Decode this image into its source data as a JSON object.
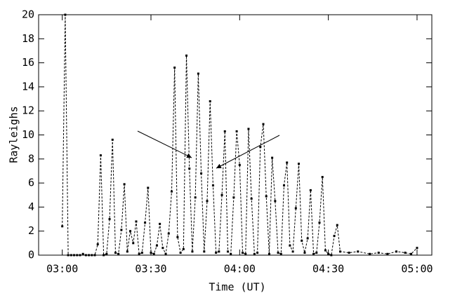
{
  "chart_data": {
    "type": "line",
    "x_label": "Time (UT)",
    "y_label": "Rayleighs",
    "x": [
      "03:00",
      "03:01",
      "03:02",
      "03:03",
      "03:04",
      "03:05",
      "03:06",
      "03:07",
      "03:08",
      "03:09",
      "03:10",
      "03:11",
      "03:12",
      "03:13",
      "03:14",
      "03:15",
      "03:16",
      "03:17",
      "03:18",
      "03:19",
      "03:20",
      "03:21",
      "03:22",
      "03:23",
      "03:24",
      "03:25",
      "03:26",
      "03:27",
      "03:28",
      "03:29",
      "03:30",
      "03:31",
      "03:32",
      "03:33",
      "03:34",
      "03:35",
      "03:36",
      "03:37",
      "03:38",
      "03:39",
      "03:40",
      "03:41",
      "03:42",
      "03:43",
      "03:44",
      "03:45",
      "03:46",
      "03:47",
      "03:48",
      "03:49",
      "03:50",
      "03:51",
      "03:52",
      "03:53",
      "03:54",
      "03:55",
      "03:56",
      "03:57",
      "03:58",
      "03:59",
      "04:00",
      "04:01",
      "04:02",
      "04:03",
      "04:04",
      "04:05",
      "04:06",
      "04:07",
      "04:08",
      "04:09",
      "04:10",
      "04:11",
      "04:12",
      "04:13",
      "04:14",
      "04:15",
      "04:16",
      "04:17",
      "04:18",
      "04:19",
      "04:20",
      "04:21",
      "04:22",
      "04:23",
      "04:24",
      "04:25",
      "04:26",
      "04:27",
      "04:28",
      "04:29",
      "04:30",
      "04:31",
      "04:32",
      "04:33",
      "04:34",
      "04:37",
      "04:40",
      "04:44",
      "04:47",
      "04:50",
      "04:53",
      "04:56",
      "04:58",
      "05:00"
    ],
    "values": [
      2.4,
      20,
      0,
      0,
      0,
      0,
      0,
      0.1,
      0,
      0,
      0,
      0,
      0.9,
      8.3,
      0,
      0.1,
      3.0,
      9.6,
      0.2,
      0.1,
      2.1,
      5.9,
      0.3,
      2.0,
      1.0,
      2.8,
      0.1,
      0.2,
      2.7,
      5.6,
      0.2,
      0.1,
      0.8,
      2.6,
      0.6,
      0.1,
      1.8,
      5.3,
      15.6,
      1.5,
      0.2,
      0.5,
      16.6,
      7.2,
      0.3,
      4.8,
      15.1,
      6.8,
      0.3,
      4.5,
      12.8,
      5.8,
      0.2,
      0.3,
      5.0,
      10.3,
      0.3,
      0.1,
      4.8,
      10.3,
      7.5,
      0.2,
      0.1,
      10.5,
      4.7,
      0.1,
      0.2,
      9.0,
      10.9,
      4.9,
      0.1,
      8.1,
      4.5,
      0.2,
      0.1,
      5.8,
      7.7,
      0.8,
      0.3,
      3.9,
      7.6,
      1.2,
      0.2,
      1.4,
      5.4,
      0.1,
      0.2,
      2.7,
      6.5,
      0.4,
      0.1,
      0,
      1.6,
      2.5,
      0.3,
      0.2,
      0.3,
      0.1,
      0.2,
      0.1,
      0.3,
      0.2,
      0.1,
      0.6
    ],
    "color": "#000000",
    "xlim": [
      "02:52",
      "05:05"
    ],
    "xticks": [
      "03:00",
      "03:30",
      "04:00",
      "04:30",
      "05:00"
    ],
    "ylim": [
      0,
      20
    ],
    "yticks": [
      0,
      2,
      4,
      6,
      8,
      10,
      12,
      14,
      16,
      18,
      20
    ]
  }
}
